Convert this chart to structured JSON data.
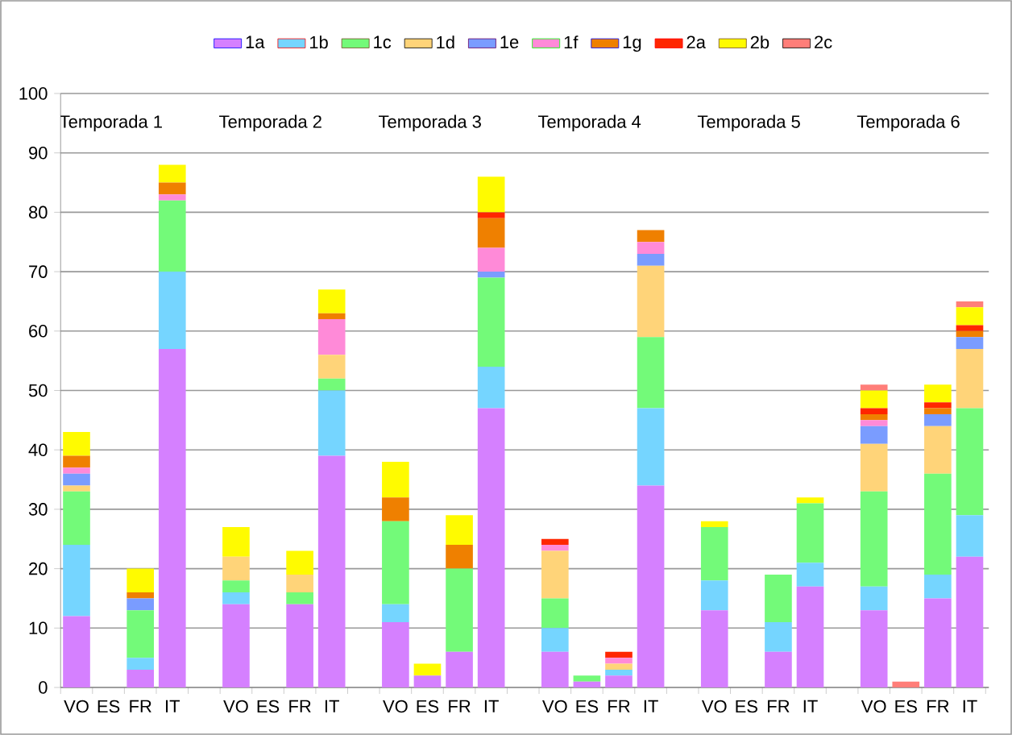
{
  "chart_data": {
    "type": "bar",
    "stacked": true,
    "categories": [
      "VO",
      "ES",
      "FR",
      "IT",
      null,
      "VO",
      "ES",
      "FR",
      "IT",
      null,
      "VO",
      "ES",
      "FR",
      "IT",
      null,
      "VO",
      "ES",
      "FR",
      "IT",
      null,
      "VO",
      "ES",
      "FR",
      "IT",
      null,
      "VO",
      "ES",
      "FR",
      "IT"
    ],
    "series": [
      {
        "name": "1a",
        "color": "#d580ff",
        "values": [
          12,
          0,
          3,
          57,
          null,
          14,
          0,
          14,
          39,
          null,
          11,
          2,
          6,
          47,
          null,
          6,
          1,
          2,
          34,
          null,
          13,
          0,
          6,
          17,
          null,
          13,
          0,
          15,
          22
        ]
      },
      {
        "name": "1b",
        "color": "#75d5ff",
        "values": [
          12,
          0,
          2,
          13,
          null,
          2,
          0,
          0,
          11,
          null,
          3,
          0,
          0,
          7,
          null,
          4,
          0,
          1,
          13,
          null,
          5,
          0,
          5,
          4,
          null,
          4,
          0,
          4,
          7
        ]
      },
      {
        "name": "1c",
        "color": "#73fa79",
        "values": [
          9,
          0,
          8,
          12,
          null,
          2,
          0,
          2,
          2,
          null,
          14,
          0,
          14,
          15,
          null,
          5,
          1,
          0,
          12,
          null,
          9,
          0,
          8,
          10,
          null,
          16,
          0,
          17,
          18
        ]
      },
      {
        "name": "1d",
        "color": "#ffd479",
        "values": [
          1,
          0,
          0,
          0,
          null,
          4,
          0,
          3,
          4,
          null,
          0,
          0,
          0,
          0,
          null,
          8,
          0,
          1,
          12,
          null,
          0,
          0,
          0,
          0,
          null,
          8,
          0,
          8,
          10
        ]
      },
      {
        "name": "1e",
        "color": "#7a9cff",
        "values": [
          2,
          0,
          2,
          0,
          null,
          0,
          0,
          0,
          0,
          null,
          0,
          0,
          0,
          1,
          null,
          0,
          0,
          0,
          2,
          null,
          0,
          0,
          0,
          0,
          null,
          3,
          0,
          2,
          2
        ]
      },
      {
        "name": "1f",
        "color": "#ff8ad8",
        "values": [
          1,
          0,
          0,
          1,
          null,
          0,
          0,
          0,
          6,
          null,
          0,
          0,
          0,
          4,
          null,
          1,
          0,
          1,
          2,
          null,
          0,
          0,
          0,
          0,
          null,
          1,
          0,
          0,
          0
        ]
      },
      {
        "name": "1g",
        "color": "#ef8000",
        "values": [
          2,
          0,
          1,
          2,
          null,
          0,
          0,
          0,
          1,
          null,
          4,
          0,
          4,
          5,
          null,
          0,
          0,
          0,
          2,
          null,
          0,
          0,
          0,
          0,
          null,
          1,
          0,
          1,
          1
        ]
      },
      {
        "name": "2a",
        "color": "#ff2600",
        "values": [
          0,
          0,
          0,
          0,
          null,
          0,
          0,
          0,
          0,
          null,
          0,
          0,
          0,
          1,
          null,
          1,
          0,
          1,
          0,
          null,
          0,
          0,
          0,
          0,
          null,
          1,
          0,
          1,
          1
        ]
      },
      {
        "name": "2b",
        "color": "#fffb00",
        "values": [
          4,
          0,
          4,
          3,
          null,
          5,
          0,
          4,
          4,
          null,
          6,
          2,
          5,
          6,
          null,
          0,
          0,
          0,
          0,
          null,
          1,
          0,
          0,
          1,
          null,
          3,
          0,
          3,
          3
        ]
      },
      {
        "name": "2c",
        "color": "#ff7e79",
        "values": [
          0,
          0,
          0,
          0,
          null,
          0,
          0,
          0,
          0,
          null,
          0,
          0,
          0,
          0,
          null,
          0,
          0,
          0,
          0,
          null,
          0,
          0,
          0,
          0,
          null,
          1,
          1,
          0,
          1
        ]
      }
    ],
    "ylim": [
      0,
      100
    ],
    "yticks": [
      0,
      10,
      20,
      30,
      40,
      50,
      60,
      70,
      80,
      90,
      100
    ],
    "grid": "y",
    "legend": "top",
    "annotations": [
      "Temporada 1",
      "Temporada 2",
      "Temporada 3",
      "Temporada 4",
      "Temporada 5",
      "Temporada 6"
    ]
  }
}
